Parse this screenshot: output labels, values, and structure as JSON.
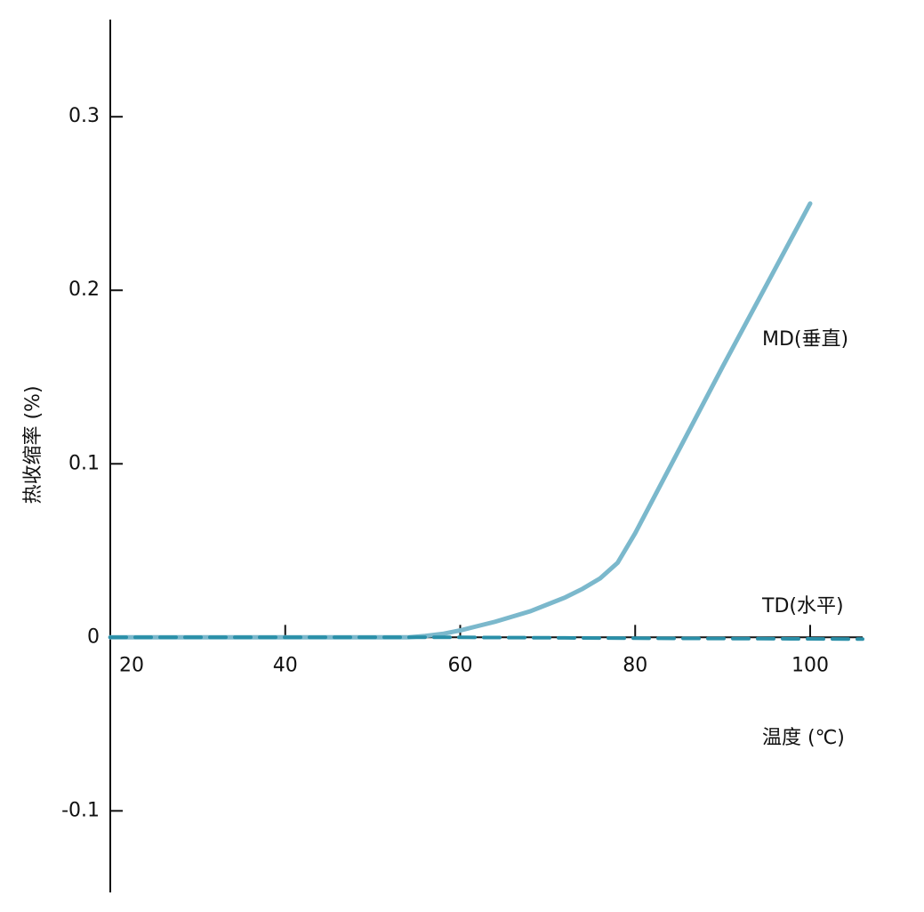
{
  "chart_data": {
    "type": "line",
    "y_label": "热收缩率 (%)",
    "x_label": "温度 (℃)",
    "xlim": [
      20,
      106
    ],
    "xticks": [
      20,
      40,
      60,
      80,
      100
    ],
    "ylim": [
      -0.147,
      0.356
    ],
    "yticks": [
      -0.1,
      0,
      0.1,
      0.2,
      0.3
    ],
    "grid": false,
    "series": [
      {
        "name": "MD(垂直)",
        "color": "#7bb8cc",
        "dashed": false,
        "x": [
          20,
          30,
          40,
          50,
          54,
          56,
          58,
          60,
          62,
          64,
          66,
          68,
          70,
          72,
          74,
          76,
          78,
          80,
          85,
          90,
          95,
          100
        ],
        "values": [
          0,
          0,
          0,
          0,
          0,
          0.0008,
          0.002,
          0.004,
          0.0065,
          0.009,
          0.012,
          0.015,
          0.019,
          0.023,
          0.028,
          0.034,
          0.043,
          0.06,
          0.108,
          0.156,
          0.203,
          0.25
        ]
      },
      {
        "name": "TD(水平)",
        "color": "#2a8fa8",
        "dashed": true,
        "x": [
          20,
          60,
          80,
          106
        ],
        "values": [
          0,
          0,
          -0.0005,
          -0.001
        ]
      }
    ]
  }
}
